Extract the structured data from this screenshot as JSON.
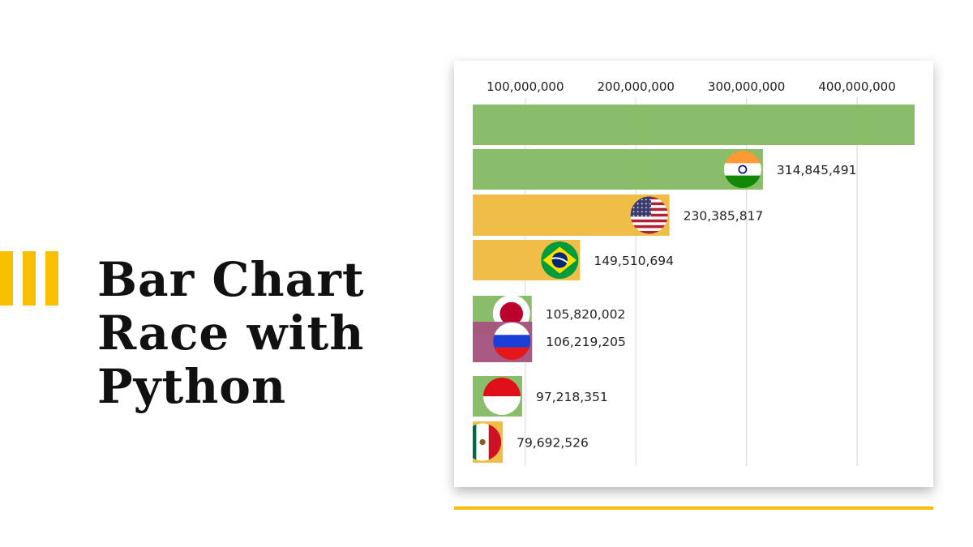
{
  "title": "Bar Chart\nRace with\nPython",
  "colors": {
    "accent": "#f8bf00",
    "green": "#86bb64",
    "yellow": "#f0bb41",
    "purple": "#a5557e",
    "grid": "#dddddd"
  },
  "chart_data": {
    "type": "bar",
    "orientation": "horizontal",
    "title": "",
    "xlabel": "",
    "ylabel": "",
    "xlim": [
      52500000,
      452000000
    ],
    "grid": true,
    "tick_values": [
      100000000,
      200000000,
      300000000,
      400000000
    ],
    "tick_labels": [
      "100,000,000",
      "200,000,000",
      "300,000,000",
      "400,000,000"
    ],
    "bars": [
      {
        "flag": "china-flag-icon",
        "value": 452000000,
        "label": "",
        "color": "#86bb64"
      },
      {
        "flag": "india-flag-icon",
        "value": 314845491,
        "label": "314,845,491",
        "color": "#86bb64"
      },
      {
        "flag": "usa-flag-icon",
        "value": 230385817,
        "label": "230,385,817",
        "color": "#f0bb41"
      },
      {
        "flag": "brazil-flag-icon",
        "value": 149510694,
        "label": "149,510,694",
        "color": "#f0bb41"
      },
      {
        "flag": "japan-flag-icon",
        "value": 105820002,
        "label": "105,820,002",
        "color": "#86bb64"
      },
      {
        "flag": "russia-flag-icon",
        "value": 106219205,
        "label": "106,219,205",
        "color": "#a5557e"
      },
      {
        "flag": "indonesia-flag-icon",
        "value": 97218351,
        "label": "97,218,351",
        "color": "#86bb64"
      },
      {
        "flag": "mexico-flag-icon",
        "value": 79692526,
        "label": "79,692,526",
        "color": "#f0bb41"
      }
    ]
  }
}
